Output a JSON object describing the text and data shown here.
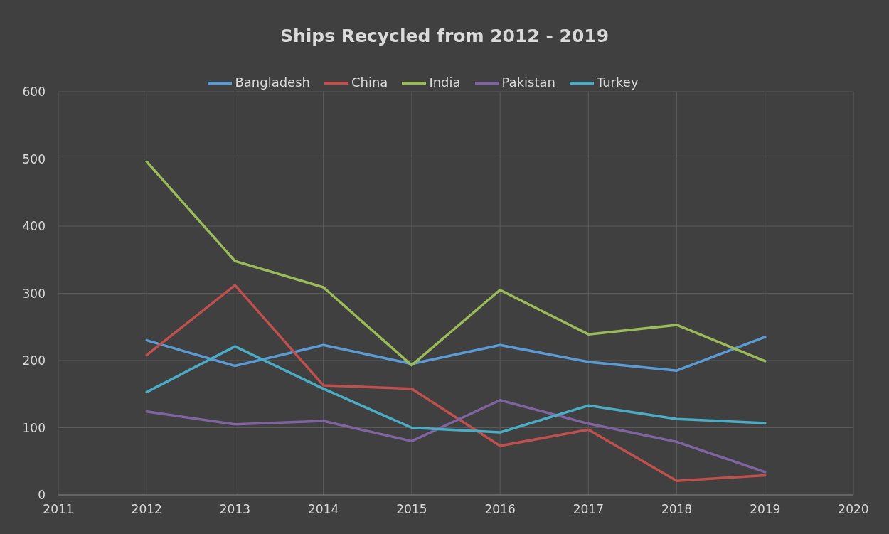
{
  "chart_data": {
    "type": "line",
    "title": "Ships Recycled from 2012 - 2019",
    "x": [
      2012,
      2013,
      2014,
      2015,
      2016,
      2017,
      2018,
      2019
    ],
    "series": [
      {
        "name": "Bangladesh",
        "color": "#5b9bd5",
        "values": [
          230,
          192,
          223,
          195,
          223,
          198,
          185,
          235
        ]
      },
      {
        "name": "China",
        "color": "#c0504d",
        "values": [
          208,
          312,
          163,
          158,
          73,
          97,
          21,
          29
        ]
      },
      {
        "name": "India",
        "color": "#9bbb59",
        "values": [
          496,
          348,
          309,
          193,
          305,
          239,
          253,
          199
        ]
      },
      {
        "name": "Pakistan",
        "color": "#8064a2",
        "values": [
          124,
          105,
          110,
          80,
          141,
          106,
          79,
          34
        ]
      },
      {
        "name": "Turkey",
        "color": "#4bacc6",
        "values": [
          153,
          221,
          158,
          100,
          93,
          133,
          113,
          107
        ]
      }
    ],
    "xlim": [
      2011,
      2020
    ],
    "xticks": [
      2011,
      2012,
      2013,
      2014,
      2015,
      2016,
      2017,
      2018,
      2019,
      2020
    ],
    "ylim": [
      0,
      600
    ],
    "yticks": [
      0,
      100,
      200,
      300,
      400,
      500,
      600
    ],
    "grid": true,
    "legend": "top",
    "marker": "none",
    "line_style": "solid"
  }
}
